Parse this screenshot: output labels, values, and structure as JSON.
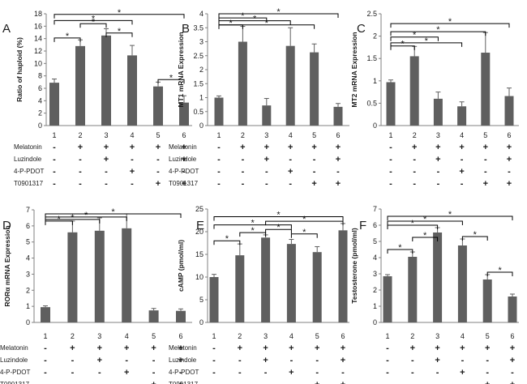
{
  "colors": {
    "bar": "#5f5f5f",
    "axis": "#808080",
    "text": "#1a1a1a",
    "bracket": "#000000"
  },
  "chart_data": [
    {
      "panel": "A",
      "type": "bar",
      "ylabel": "Ratio of haploid (%)",
      "ylim": [
        0,
        18
      ],
      "yticks": [
        0,
        2,
        4,
        6,
        8,
        10,
        12,
        14,
        16,
        18
      ],
      "categories": [
        "1",
        "2",
        "3",
        "4",
        "5",
        "6"
      ],
      "values": [
        6.9,
        12.8,
        14.5,
        11.3,
        6.3,
        3.7
      ],
      "errors": [
        0.6,
        1.0,
        1.1,
        1.6,
        0.7,
        1.1
      ],
      "brackets": [
        {
          "from": 1,
          "to": 2,
          "y": 14.1
        },
        {
          "from": 3,
          "to": 4,
          "y": 14.9
        },
        {
          "from": 2,
          "to": 3,
          "y": 16.4
        },
        {
          "from": 1,
          "to": 4,
          "y": 16.9
        },
        {
          "from": 5,
          "to": 6,
          "y": 7.4
        },
        {
          "from": 1,
          "to": 6,
          "y": 17.9
        }
      ]
    },
    {
      "panel": "B",
      "type": "bar",
      "ylabel": "MT1 mRNA Expression",
      "ylim": [
        0,
        4
      ],
      "yticks": [
        0,
        0.5,
        1,
        1.5,
        2,
        2.5,
        3,
        3.5,
        4
      ],
      "categories": [
        "1",
        "2",
        "3",
        "4",
        "5",
        "6"
      ],
      "values": [
        1.0,
        3.0,
        0.72,
        2.85,
        2.62,
        0.67
      ],
      "errors": [
        0.06,
        0.55,
        0.25,
        0.65,
        0.3,
        0.12
      ],
      "brackets": [
        {
          "from": 1,
          "to": 2,
          "y": 3.6
        },
        {
          "from": 1,
          "to": 4,
          "y": 3.75
        },
        {
          "from": 1,
          "to": 3,
          "y": 3.85
        },
        {
          "from": 1,
          "to": 5,
          "y": 3.6
        },
        {
          "from": 1,
          "to": 6,
          "y": 4.0
        }
      ]
    },
    {
      "panel": "C",
      "type": "bar",
      "ylabel": "MT2 mRNA Expression",
      "ylim": [
        0,
        2.5
      ],
      "yticks": [
        0,
        0.5,
        1,
        1.5,
        2,
        2.5
      ],
      "categories": [
        "1",
        "2",
        "3",
        "4",
        "5",
        "6"
      ],
      "values": [
        0.97,
        1.55,
        0.6,
        0.43,
        1.63,
        0.66
      ],
      "errors": [
        0.05,
        0.22,
        0.15,
        0.1,
        0.45,
        0.18
      ],
      "brackets": [
        {
          "from": 1,
          "to": 2,
          "y": 1.78
        },
        {
          "from": 1,
          "to": 4,
          "y": 1.85
        },
        {
          "from": 1,
          "to": 3,
          "y": 1.98
        },
        {
          "from": 1,
          "to": 5,
          "y": 2.1
        },
        {
          "from": 1,
          "to": 6,
          "y": 2.28
        }
      ]
    },
    {
      "panel": "D",
      "type": "bar",
      "ylabel": "RORα mRNA Expression",
      "ylim": [
        0,
        7
      ],
      "yticks": [
        0,
        1,
        2,
        3,
        4,
        5,
        6,
        7
      ],
      "categories": [
        "1",
        "2",
        "3",
        "4",
        "5",
        "6"
      ],
      "values": [
        0.95,
        5.6,
        5.7,
        5.85,
        0.75,
        0.72
      ],
      "errors": [
        0.08,
        0.7,
        0.8,
        0.9,
        0.12,
        0.12
      ],
      "brackets": [
        {
          "from": 1,
          "to": 2,
          "y": 6.3
        },
        {
          "from": 1,
          "to": 3,
          "y": 6.4
        },
        {
          "from": 1,
          "to": 4,
          "y": 6.55
        },
        {
          "from": 1,
          "to": 6,
          "y": 6.75
        }
      ]
    },
    {
      "panel": "E",
      "type": "bar",
      "ylabel": "cAMP (pmol/ml)",
      "ylim": [
        0,
        25
      ],
      "yticks": [
        0,
        5,
        10,
        15,
        20,
        25
      ],
      "categories": [
        "1",
        "2",
        "3",
        "4",
        "5",
        "6"
      ],
      "values": [
        10.0,
        14.8,
        18.7,
        17.3,
        15.5,
        20.3
      ],
      "errors": [
        0.6,
        2.5,
        0.6,
        1.0,
        1.2,
        1.5
      ],
      "brackets": [
        {
          "from": 1,
          "to": 2,
          "y": 18.0
        },
        {
          "from": 2,
          "to": 3,
          "y": 19.8
        },
        {
          "from": 3,
          "to": 4,
          "y": 20.5
        },
        {
          "from": 4,
          "to": 5,
          "y": 19.5
        },
        {
          "from": 1,
          "to": 4,
          "y": 21.5
        },
        {
          "from": 3,
          "to": 6,
          "y": 22.3
        },
        {
          "from": 1,
          "to": 6,
          "y": 23.3
        }
      ]
    },
    {
      "panel": "F",
      "type": "bar",
      "ylabel": "Testosterone (pmol/ml)",
      "ylim": [
        0,
        7
      ],
      "yticks": [
        0,
        1,
        2,
        3,
        4,
        5,
        6,
        7
      ],
      "categories": [
        "1",
        "2",
        "3",
        "4",
        "5",
        "6"
      ],
      "values": [
        2.85,
        4.05,
        5.55,
        4.75,
        2.65,
        1.6
      ],
      "errors": [
        0.1,
        0.3,
        0.3,
        0.4,
        0.3,
        0.15
      ],
      "brackets": [
        {
          "from": 1,
          "to": 2,
          "y": 4.5
        },
        {
          "from": 2,
          "to": 3,
          "y": 5.25
        },
        {
          "from": 4,
          "to": 5,
          "y": 5.3
        },
        {
          "from": 1,
          "to": 3,
          "y": 6.0
        },
        {
          "from": 1,
          "to": 4,
          "y": 6.25
        },
        {
          "from": 5,
          "to": 6,
          "y": 3.1
        },
        {
          "from": 1,
          "to": 6,
          "y": 6.55
        }
      ]
    }
  ],
  "treatment_rows": [
    {
      "label": "Melatonin",
      "signs": [
        "-",
        "+",
        "+",
        "+",
        "+",
        "+"
      ]
    },
    {
      "label": "Luzindole",
      "signs": [
        "-",
        "-",
        "+",
        "-",
        "-",
        "+"
      ]
    },
    {
      "label": "4-P-PDOT",
      "signs": [
        "-",
        "-",
        "-",
        "+",
        "-",
        "-"
      ]
    },
    {
      "label": "T0901317",
      "signs": [
        "-",
        "-",
        "-",
        "-",
        "+",
        "+"
      ]
    }
  ],
  "star": "*"
}
